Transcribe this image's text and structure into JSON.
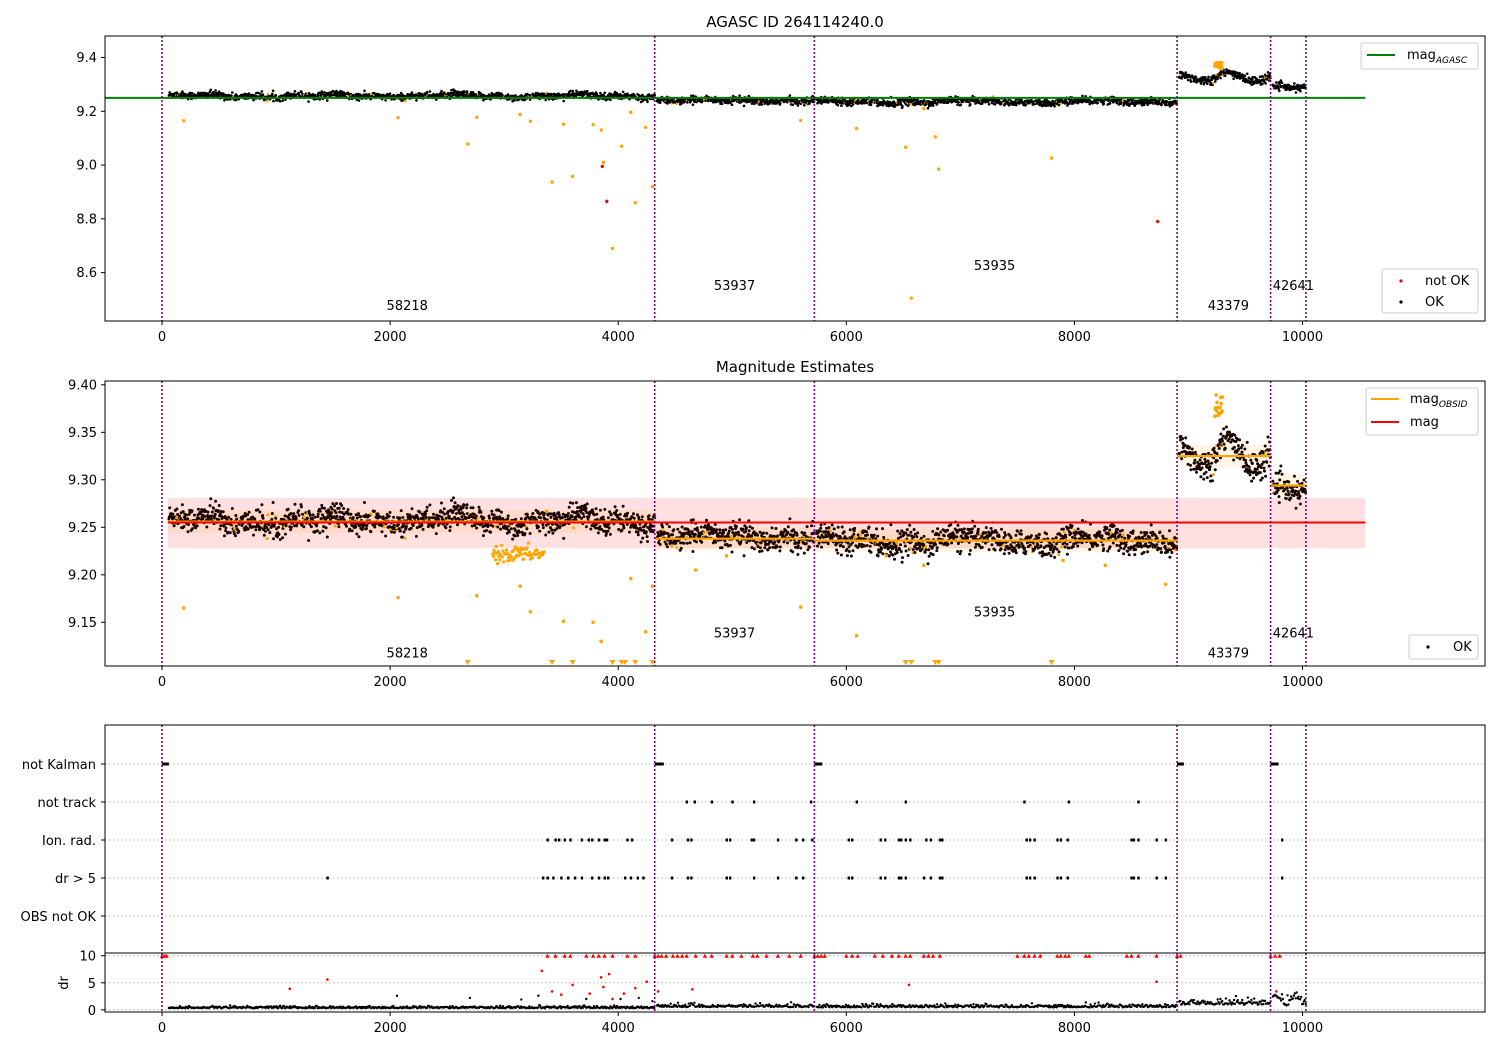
{
  "chart_data": [
    {
      "type": "scatter",
      "title": "AGASC ID 264114240.0",
      "xlim": [
        -500,
        11600
      ],
      "ylim": [
        8.42,
        9.48
      ],
      "xticks": [
        0,
        2000,
        4000,
        6000,
        8000,
        10000
      ],
      "xtick_labels": [
        "0",
        "2000",
        "4000",
        "6000",
        "8000",
        "10000"
      ],
      "yticks": [
        8.6,
        8.8,
        9.0,
        9.2,
        9.4
      ],
      "ytick_labels": [
        "8.6",
        "8.8",
        "9.0",
        "9.2",
        "9.4"
      ],
      "legend_upper": {
        "placement": "upper right",
        "items": [
          {
            "label": "mag",
            "sub": "AGASC",
            "color": "#008000"
          }
        ]
      },
      "legend_lower": {
        "placement": "lower right",
        "items": [
          {
            "label": "not OK",
            "color": "#ff0000"
          },
          {
            "label": "OK",
            "color": "#000000"
          }
        ]
      },
      "vlines": [
        0,
        4320,
        5720,
        8900,
        9720,
        10030
      ],
      "obsid_labels": [
        {
          "text": "58218",
          "x": 2150,
          "y": 8.46
        },
        {
          "text": "53937",
          "x": 5020,
          "y": 8.535
        },
        {
          "text": "53935",
          "x": 7300,
          "y": 8.61
        },
        {
          "text": "43379",
          "x": 9350,
          "y": 8.46
        },
        {
          "text": "42641",
          "x": 9920,
          "y": 8.535
        }
      ],
      "mag_agasc": {
        "value": 9.25,
        "x_range": [
          -500,
          10550
        ],
        "color": "#008000"
      },
      "segments": [
        {
          "x0": 60,
          "x1": 4320,
          "base": 9.257,
          "noise": 0.012
        },
        {
          "x0": 4340,
          "x1": 5720,
          "base": 9.24,
          "noise": 0.011
        },
        {
          "x0": 5740,
          "x1": 8900,
          "base": 9.236,
          "noise": 0.012
        },
        {
          "x0": 8920,
          "x1": 9720,
          "base": 9.325,
          "noise": 0.015
        },
        {
          "x0": 9740,
          "x1": 10030,
          "base": 9.293,
          "noise": 0.011
        }
      ],
      "outliers_ok": [
        [
          190,
          9.165
        ],
        [
          2070,
          9.176
        ],
        [
          2680,
          9.078
        ],
        [
          2760,
          9.178
        ],
        [
          3140,
          9.188
        ],
        [
          3230,
          9.163
        ],
        [
          3420,
          8.937
        ],
        [
          3520,
          9.152
        ],
        [
          3600,
          8.958
        ],
        [
          3780,
          9.15
        ],
        [
          3850,
          9.13
        ],
        [
          3870,
          9.01
        ],
        [
          3950,
          8.69
        ],
        [
          4030,
          9.07
        ],
        [
          4110,
          9.196
        ],
        [
          4150,
          8.86
        ],
        [
          4240,
          9.14
        ],
        [
          4300,
          8.92
        ],
        [
          5600,
          9.166
        ],
        [
          6090,
          9.136
        ],
        [
          6520,
          9.066
        ],
        [
          6570,
          8.505
        ],
        [
          6680,
          9.21
        ],
        [
          6780,
          9.105
        ],
        [
          6810,
          8.985
        ],
        [
          7800,
          9.026
        ]
      ],
      "outliers_not_ok": [
        [
          3860,
          8.995
        ],
        [
          3900,
          8.865
        ],
        [
          8730,
          8.79
        ]
      ]
    },
    {
      "type": "scatter",
      "title": "Magnitude Estimates",
      "xlim": [
        -500,
        11600
      ],
      "ylim": [
        9.104,
        9.404
      ],
      "xticks": [
        0,
        2000,
        4000,
        6000,
        8000,
        10000
      ],
      "xtick_labels": [
        "0",
        "2000",
        "4000",
        "6000",
        "8000",
        "10000"
      ],
      "yticks": [
        9.15,
        9.2,
        9.25,
        9.3,
        9.35,
        9.4
      ],
      "ytick_labels": [
        "9.15",
        "9.20",
        "9.25",
        "9.30",
        "9.35",
        "9.40"
      ],
      "legend_upper": {
        "placement": "upper right",
        "items": [
          {
            "label": "mag",
            "sub": "OBSID",
            "color": "#ffa500"
          },
          {
            "label": "mag",
            "color": "#ff0000"
          }
        ]
      },
      "legend_lower": {
        "placement": "lower right",
        "items": [
          {
            "label": "OK",
            "color": "#000000"
          }
        ]
      },
      "mag_line": {
        "value": 9.255,
        "band": [
          9.228,
          9.281
        ],
        "x_range": [
          50,
          10550
        ],
        "color": "#ff0000"
      },
      "mag_obsid": [
        {
          "x0": 50,
          "x1": 4320,
          "value": 9.256
        },
        {
          "x0": 4320,
          "x1": 5720,
          "value": 9.238
        },
        {
          "x0": 5720,
          "x1": 8900,
          "value": 9.236
        },
        {
          "x0": 8900,
          "x1": 9720,
          "value": 9.325
        },
        {
          "x0": 9720,
          "x1": 10030,
          "value": 9.294
        }
      ],
      "vlines": [
        0,
        4320,
        5720,
        8900,
        9720,
        10030
      ],
      "obsid_labels": [
        {
          "text": "58218",
          "x": 2150,
          "y": 9.113
        },
        {
          "text": "53937",
          "x": 5020,
          "y": 9.134
        },
        {
          "text": "53935",
          "x": 7300,
          "y": 9.156
        },
        {
          "text": "43379",
          "x": 9350,
          "y": 9.113
        },
        {
          "text": "42641",
          "x": 9920,
          "y": 9.134
        }
      ],
      "outliers_ok": [
        [
          190,
          9.165
        ],
        [
          2070,
          9.176
        ],
        [
          2760,
          9.178
        ],
        [
          3140,
          9.188
        ],
        [
          3230,
          9.161
        ],
        [
          3520,
          9.151
        ],
        [
          3780,
          9.15
        ],
        [
          3850,
          9.13
        ],
        [
          4110,
          9.196
        ],
        [
          4240,
          9.14
        ],
        [
          4300,
          9.188
        ],
        [
          5600,
          9.166
        ],
        [
          6090,
          9.136
        ],
        [
          6680,
          9.21
        ],
        [
          4680,
          9.205
        ],
        [
          4950,
          9.22
        ],
        [
          6350,
          9.22
        ],
        [
          7900,
          9.215
        ],
        [
          8270,
          9.21
        ],
        [
          8800,
          9.19
        ]
      ],
      "below_axis_markers": [
        2680,
        3420,
        3600,
        3950,
        4030,
        4060,
        4150,
        4300,
        6520,
        6570,
        6780,
        6810,
        7800
      ]
    },
    {
      "type": "scatter",
      "title": "",
      "xlim": [
        -500,
        11600
      ],
      "xticks": [
        0,
        2000,
        4000,
        6000,
        8000,
        10000
      ],
      "xtick_labels": [
        "0",
        "2000",
        "4000",
        "6000",
        "8000",
        "10000"
      ],
      "flag_rows": [
        "not Kalman",
        "not track",
        "Ion. rad.",
        "dr > 5",
        "OBS not OK"
      ],
      "flags": {
        "not Kalman": [
          [
            0,
            60
          ],
          [
            4320,
            4400
          ],
          [
            5720,
            5790
          ],
          [
            8900,
            8960
          ],
          [
            9720,
            9790
          ]
        ],
        "not track": [
          4600,
          4670,
          4820,
          5000,
          5190,
          5690,
          6090,
          6520,
          7560,
          7950,
          8560
        ],
        "Ion. rad.": [
          3380,
          3450,
          3480,
          3530,
          3580,
          3680,
          3740,
          3770,
          3830,
          3880,
          3900,
          4080,
          4120,
          4470,
          4610,
          4640,
          4950,
          4980,
          5170,
          5190,
          5400,
          5560,
          5620,
          5700,
          6020,
          6050,
          6300,
          6340,
          6460,
          6480,
          6520,
          6560,
          6700,
          6740,
          6820,
          6840,
          7580,
          7610,
          7650,
          7850,
          7880,
          7940,
          8500,
          8520,
          8560,
          8720,
          8800,
          9820
        ],
        "dr > 5": [
          1450,
          3340,
          3380,
          3430,
          3500,
          3560,
          3620,
          3680,
          3770,
          3830,
          3880,
          3910,
          4060,
          4110,
          4170,
          4220,
          4470,
          4610,
          4640,
          4950,
          4980,
          5190,
          5400,
          5560,
          5620,
          6020,
          6050,
          6300,
          6340,
          6460,
          6480,
          6520,
          6680,
          6740,
          6820,
          6840,
          7580,
          7610,
          7650,
          7850,
          7880,
          7940,
          8500,
          8520,
          8560,
          8720,
          8800,
          9820
        ],
        "OBS not OK": []
      },
      "dr": {
        "ylabel": "dr",
        "ylim": [
          -0.4,
          10.5
        ],
        "yticks": [
          0,
          5,
          10
        ],
        "ytick_labels": [
          "0",
          "5",
          "10"
        ],
        "clipped_red_x": [
          0,
          20,
          40,
          4320,
          4350,
          4380,
          4420,
          4480,
          4520,
          4560,
          4600,
          4680,
          4760,
          4820,
          4950,
          5000,
          5080,
          5180,
          5220,
          5300,
          5400,
          5500,
          5600,
          5720,
          5750,
          5780,
          5810,
          6000,
          6050,
          6100,
          6250,
          6320,
          6400,
          6460,
          6520,
          6560,
          6680,
          6720,
          6760,
          6820,
          7500,
          7560,
          7600,
          7650,
          7700,
          7850,
          7880,
          7920,
          7950,
          8100,
          8130,
          8460,
          8500,
          8560,
          8720,
          8900,
          8930,
          9720,
          9760,
          9800,
          3380,
          3450,
          3530,
          3580,
          3720,
          3780,
          3830,
          3880,
          3950,
          4080,
          4150
        ],
        "red_points": [
          [
            1120,
            3.9
          ],
          [
            1450,
            5.6
          ],
          [
            3330,
            7.2
          ],
          [
            3420,
            3.4
          ],
          [
            3500,
            2.8
          ],
          [
            3600,
            4.6
          ],
          [
            3750,
            3.0
          ],
          [
            3850,
            6.0
          ],
          [
            3870,
            4.2
          ],
          [
            3920,
            6.6
          ],
          [
            3950,
            2.0
          ],
          [
            4050,
            3.0
          ],
          [
            4150,
            4.0
          ],
          [
            4250,
            5.2
          ],
          [
            4350,
            3.4
          ],
          [
            4650,
            3.8
          ],
          [
            6550,
            4.6
          ],
          [
            8720,
            5.2
          ],
          [
            9770,
            3.4
          ]
        ],
        "black_points": [
          [
            2060,
            2.6
          ],
          [
            2700,
            2.2
          ],
          [
            3150,
            1.9
          ],
          [
            3300,
            2.6
          ],
          [
            3720,
            2.0
          ],
          [
            4020,
            2.0
          ],
          [
            4180,
            2.2
          ],
          [
            4300,
            1.6
          ]
        ],
        "segments": [
          {
            "x0": 60,
            "x1": 4320,
            "base": 0.3
          },
          {
            "x0": 4340,
            "x1": 5720,
            "base": 0.5
          },
          {
            "x0": 5740,
            "x1": 8900,
            "base": 0.45
          },
          {
            "x0": 8920,
            "x1": 9720,
            "base": 0.9
          },
          {
            "x0": 9740,
            "x1": 10030,
            "base": 1.4
          }
        ]
      },
      "vlines": [
        0,
        4320,
        5720,
        8900,
        9720,
        10030
      ]
    }
  ]
}
